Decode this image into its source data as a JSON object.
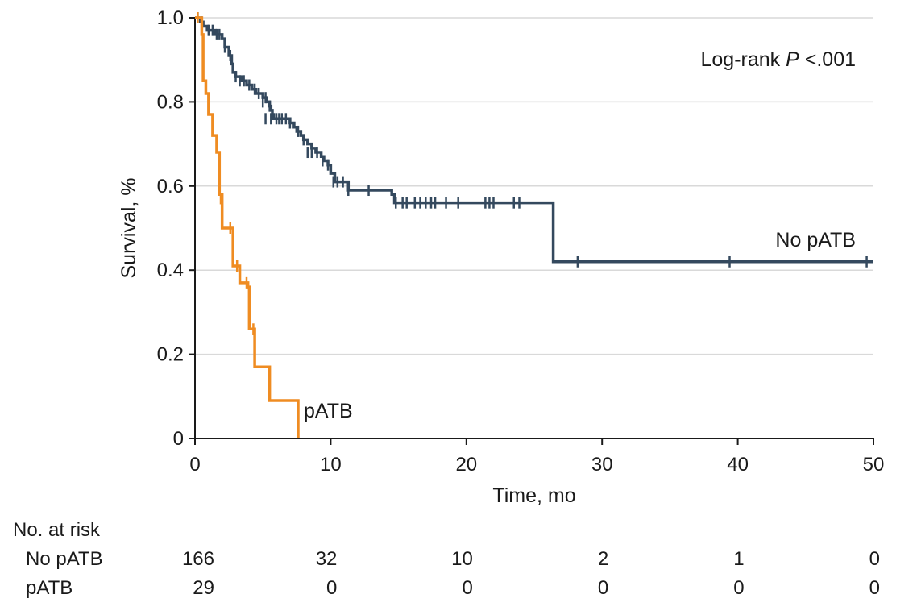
{
  "chart_data": {
    "type": "line",
    "subtype": "kaplan-meier-step",
    "xlabel": "Time, mo",
    "ylabel": "Survival, %",
    "xlim": [
      0,
      50
    ],
    "ylim": [
      0,
      1.0
    ],
    "x_ticks": [
      0,
      10,
      20,
      30,
      40,
      50
    ],
    "x_tick_labels": [
      "0",
      "10",
      "20",
      "30",
      "40",
      "50"
    ],
    "y_ticks": [
      0,
      0.2,
      0.4,
      0.6,
      0.8,
      1.0
    ],
    "y_tick_labels": [
      "0",
      "0.2",
      "0.4",
      "0.6",
      "0.8",
      "1.0"
    ],
    "grid": "horizontal",
    "annotation": {
      "prefix": "Log-rank ",
      "italic": "P",
      "suffix": " <.001"
    },
    "series": [
      {
        "name": "No pATB",
        "color": "#34495e",
        "steps": [
          [
            0,
            1.0
          ],
          [
            0.4,
            0.99
          ],
          [
            0.6,
            0.98
          ],
          [
            0.9,
            0.97
          ],
          [
            1.5,
            0.96
          ],
          [
            2.0,
            0.95
          ],
          [
            2.2,
            0.93
          ],
          [
            2.5,
            0.91
          ],
          [
            2.7,
            0.89
          ],
          [
            2.8,
            0.87
          ],
          [
            3.0,
            0.86
          ],
          [
            3.4,
            0.85
          ],
          [
            3.8,
            0.84
          ],
          [
            4.2,
            0.83
          ],
          [
            4.5,
            0.82
          ],
          [
            5.0,
            0.81
          ],
          [
            5.3,
            0.8
          ],
          [
            5.5,
            0.79
          ],
          [
            5.6,
            0.78
          ],
          [
            5.7,
            0.77
          ],
          [
            5.8,
            0.76
          ],
          [
            7.0,
            0.75
          ],
          [
            7.3,
            0.74
          ],
          [
            7.5,
            0.73
          ],
          [
            7.8,
            0.72
          ],
          [
            8.0,
            0.71
          ],
          [
            8.3,
            0.7
          ],
          [
            8.6,
            0.69
          ],
          [
            8.9,
            0.68
          ],
          [
            9.3,
            0.67
          ],
          [
            9.5,
            0.66
          ],
          [
            9.8,
            0.65
          ],
          [
            10.0,
            0.63
          ],
          [
            10.3,
            0.61
          ],
          [
            11.3,
            0.59
          ],
          [
            14.5,
            0.58
          ],
          [
            14.7,
            0.56
          ],
          [
            26.4,
            0.42
          ],
          [
            50,
            0.42
          ]
        ],
        "censors": [
          [
            0.2,
            1.0
          ],
          [
            0.5,
            0.99
          ],
          [
            1.0,
            0.97
          ],
          [
            1.3,
            0.97
          ],
          [
            1.6,
            0.96
          ],
          [
            1.8,
            0.96
          ],
          [
            2.2,
            0.93
          ],
          [
            2.6,
            0.91
          ],
          [
            3.0,
            0.86
          ],
          [
            3.3,
            0.85
          ],
          [
            3.6,
            0.85
          ],
          [
            4.0,
            0.84
          ],
          [
            4.4,
            0.83
          ],
          [
            4.7,
            0.82
          ],
          [
            5.2,
            0.81
          ],
          [
            5.0,
            0.8
          ],
          [
            5.5,
            0.79
          ],
          [
            5.2,
            0.76
          ],
          [
            5.6,
            0.76
          ],
          [
            6.0,
            0.76
          ],
          [
            6.2,
            0.76
          ],
          [
            6.4,
            0.76
          ],
          [
            6.7,
            0.76
          ],
          [
            7.0,
            0.75
          ],
          [
            7.6,
            0.73
          ],
          [
            8.0,
            0.71
          ],
          [
            8.3,
            0.68
          ],
          [
            8.6,
            0.68
          ],
          [
            9.0,
            0.68
          ],
          [
            9.4,
            0.66
          ],
          [
            9.8,
            0.65
          ],
          [
            10.2,
            0.61
          ],
          [
            10.5,
            0.61
          ],
          [
            10.9,
            0.61
          ],
          [
            11.3,
            0.59
          ],
          [
            12.8,
            0.59
          ],
          [
            14.8,
            0.56
          ],
          [
            15.3,
            0.56
          ],
          [
            15.6,
            0.56
          ],
          [
            16.2,
            0.56
          ],
          [
            16.6,
            0.56
          ],
          [
            17.0,
            0.56
          ],
          [
            17.4,
            0.56
          ],
          [
            17.7,
            0.56
          ],
          [
            18.5,
            0.56
          ],
          [
            19.4,
            0.56
          ],
          [
            21.4,
            0.56
          ],
          [
            21.7,
            0.56
          ],
          [
            22.0,
            0.56
          ],
          [
            23.5,
            0.56
          ],
          [
            23.9,
            0.56
          ],
          [
            28.2,
            0.42
          ],
          [
            39.4,
            0.42
          ],
          [
            49.5,
            0.42
          ]
        ]
      },
      {
        "name": "pATB",
        "color": "#ef8c22",
        "steps": [
          [
            0,
            1.0
          ],
          [
            0.5,
            0.96
          ],
          [
            0.6,
            0.85
          ],
          [
            0.8,
            0.82
          ],
          [
            1.0,
            0.77
          ],
          [
            1.3,
            0.72
          ],
          [
            1.6,
            0.68
          ],
          [
            1.8,
            0.58
          ],
          [
            2.0,
            0.5
          ],
          [
            2.8,
            0.41
          ],
          [
            3.3,
            0.37
          ],
          [
            3.9,
            0.36
          ],
          [
            4.0,
            0.26
          ],
          [
            4.4,
            0.17
          ],
          [
            5.5,
            0.09
          ],
          [
            7.6,
            0.0
          ]
        ],
        "censors": [
          [
            0.2,
            1.0
          ],
          [
            1.9,
            0.57
          ],
          [
            2.6,
            0.5
          ],
          [
            3.1,
            0.41
          ],
          [
            3.8,
            0.37
          ],
          [
            4.3,
            0.26
          ]
        ]
      }
    ]
  },
  "series_labels": {
    "no_patb": "No pATB",
    "patb": "pATB"
  },
  "risk_table": {
    "title": "No. at risk",
    "rows": [
      {
        "label": "No pATB",
        "values": [
          "166",
          "32",
          "10",
          "2",
          "1",
          "0"
        ]
      },
      {
        "label": "pATB",
        "values": [
          "29",
          "0",
          "0",
          "0",
          "0",
          "0"
        ]
      }
    ]
  }
}
